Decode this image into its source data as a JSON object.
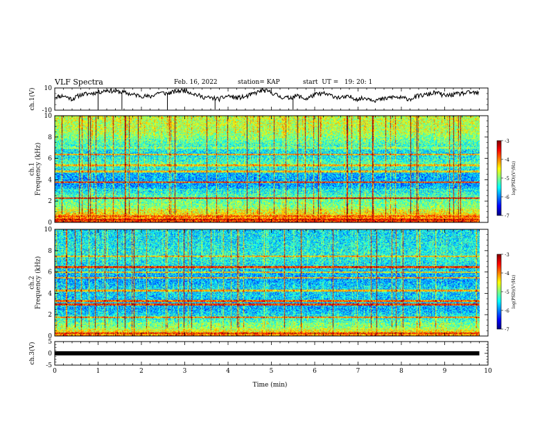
{
  "header": {
    "title": "VLF Spectra",
    "date": "Feb. 16, 2022",
    "station": "station= KAP",
    "start": "start  UT =   19: 20: 1"
  },
  "chart_data": [
    {
      "type": "line",
      "panel": "ch1-waveform",
      "ylabel": "ch.1(V)",
      "ylim": [
        -10,
        10
      ],
      "yticks": [
        "10",
        "-10"
      ],
      "xlim": [
        0,
        10
      ],
      "grid": false,
      "series": [
        {
          "x": [
            0,
            0.2,
            0.4,
            0.6,
            0.8,
            1.0,
            1.2,
            1.4,
            1.6,
            1.8,
            2.0,
            2.2,
            2.4,
            2.6,
            2.8,
            3.0,
            3.2,
            3.4,
            3.6,
            3.8,
            4.0,
            4.2,
            4.4,
            4.6,
            4.8,
            5.0,
            5.2,
            5.4,
            5.6,
            5.8,
            6.0,
            6.2,
            6.4,
            6.6,
            6.8,
            7.0,
            7.2,
            7.4,
            7.6,
            7.8,
            8.0,
            8.2,
            8.4,
            8.6,
            8.8,
            9.0,
            9.2,
            9.4,
            9.6,
            9.8
          ],
          "values": [
            2,
            3,
            0,
            4,
            5,
            6,
            8,
            7,
            6,
            4,
            3,
            2,
            6,
            5,
            7,
            8,
            5,
            2,
            1,
            0,
            3,
            1,
            2,
            5,
            8,
            6,
            2,
            1,
            3,
            0,
            4,
            5,
            3,
            1,
            2,
            0,
            1,
            -1,
            0,
            2,
            1,
            0,
            3,
            4,
            6,
            3,
            4,
            5,
            6,
            5
          ]
        }
      ]
    },
    {
      "type": "heatmap",
      "panel": "ch1-spectrogram",
      "ylabel": "ch.1\nFrequency (kHz)",
      "ylim": [
        0,
        10
      ],
      "yticks": [
        "10",
        "8",
        "6",
        "4",
        "2",
        "0"
      ],
      "xlim": [
        0,
        9.8
      ],
      "colorbar": {
        "range": [
          -7,
          -3
        ],
        "ticks": [
          "-3",
          "-4",
          "-5",
          "-6",
          "-7"
        ],
        "label": "log(PSD)(V²/Hz)"
      },
      "bands": [
        {
          "freq": 0.3,
          "level": -3.4
        },
        {
          "freq": 0.6,
          "level": -3.8
        },
        {
          "freq": 1.2,
          "level": -4.6
        },
        {
          "freq": 2.3,
          "level": -3.5
        },
        {
          "freq": 3.1,
          "level": -5.4
        },
        {
          "freq": 3.8,
          "level": -3.8
        },
        {
          "freq": 4.8,
          "level": -4.4
        },
        {
          "freq": 5.4,
          "level": -4.3
        },
        {
          "freq": 6.4,
          "level": -4.2
        },
        {
          "freq": 7.0,
          "level": -5.0
        }
      ],
      "profile": [
        {
          "freq": 0,
          "level": -3.6
        },
        {
          "freq": 0.8,
          "level": -4.4
        },
        {
          "freq": 1.5,
          "level": -5.0
        },
        {
          "freq": 2.5,
          "level": -5.2
        },
        {
          "freq": 3.5,
          "level": -5.9
        },
        {
          "freq": 4.5,
          "level": -5.8
        },
        {
          "freq": 5.5,
          "level": -5.2
        },
        {
          "freq": 6.5,
          "level": -5.6
        },
        {
          "freq": 7.5,
          "level": -5.2
        },
        {
          "freq": 8.5,
          "level": -4.8
        },
        {
          "freq": 10,
          "level": -4.7
        }
      ]
    },
    {
      "type": "heatmap",
      "panel": "ch2-spectrogram",
      "ylabel": "ch.2\nFrequency (kHz)",
      "ylim": [
        0,
        10
      ],
      "yticks": [
        "10",
        "8",
        "6",
        "4",
        "2",
        "0"
      ],
      "xlim": [
        0,
        9.8
      ],
      "colorbar": {
        "range": [
          -7,
          -3
        ],
        "ticks": [
          "-3",
          "-4",
          "-5",
          "-6",
          "-7"
        ],
        "label": "log(PSD)(V²/Hz)"
      },
      "bands": [
        {
          "freq": 0.3,
          "level": -3.6
        },
        {
          "freq": 1.2,
          "level": -5.0
        },
        {
          "freq": 1.8,
          "level": -4.0
        },
        {
          "freq": 3.0,
          "level": -3.7
        },
        {
          "freq": 3.3,
          "level": -3.9
        },
        {
          "freq": 4.3,
          "level": -4.3
        },
        {
          "freq": 5.5,
          "level": -4.3
        },
        {
          "freq": 6.0,
          "level": -4.5
        },
        {
          "freq": 6.5,
          "level": -3.7
        },
        {
          "freq": 7.5,
          "level": -4.3
        }
      ],
      "profile": [
        {
          "freq": 0,
          "level": -3.9
        },
        {
          "freq": 0.8,
          "level": -4.9
        },
        {
          "freq": 1.5,
          "level": -5.3
        },
        {
          "freq": 2.5,
          "level": -5.8
        },
        {
          "freq": 3.5,
          "level": -5.7
        },
        {
          "freq": 4.5,
          "level": -5.6
        },
        {
          "freq": 5.5,
          "level": -5.9
        },
        {
          "freq": 6.5,
          "level": -5.6
        },
        {
          "freq": 7.5,
          "level": -5.4
        },
        {
          "freq": 8.5,
          "level": -5.5
        },
        {
          "freq": 10,
          "level": -5.6
        }
      ]
    },
    {
      "type": "line",
      "panel": "ch3-waveform",
      "ylabel": "ch.3(V)",
      "ylim": [
        -5,
        5
      ],
      "yticks": [
        "5",
        "0",
        "-5"
      ],
      "xlim": [
        0,
        10
      ],
      "series": [
        {
          "x": [
            0,
            9.8
          ],
          "values": [
            0,
            0
          ]
        }
      ]
    }
  ],
  "xaxis": {
    "label": "Time  (min)",
    "ticks": [
      "0",
      "1",
      "2",
      "3",
      "4",
      "5",
      "6",
      "7",
      "8",
      "9",
      "10"
    ]
  },
  "colormap": [
    "#00007f",
    "#0000ff",
    "#007fff",
    "#00ffff",
    "#7fff7f",
    "#ffff00",
    "#ff7f00",
    "#ff0000",
    "#7f0000"
  ]
}
